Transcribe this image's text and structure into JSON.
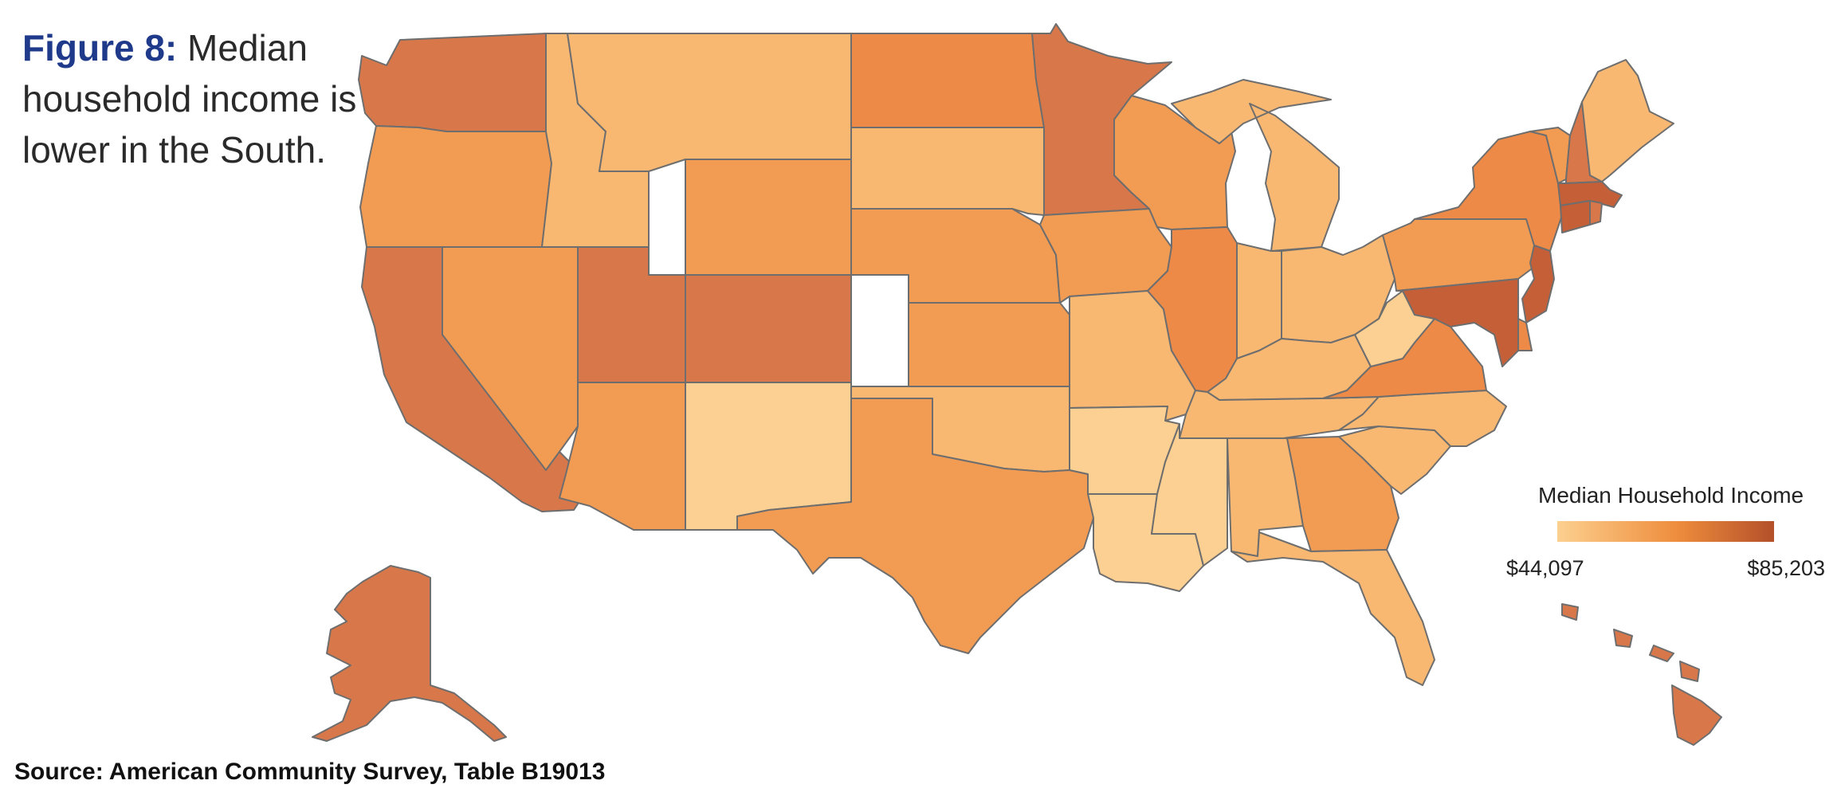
{
  "caption": {
    "figure_label": "Figure 8:",
    "text": "Median household income is lower in the South."
  },
  "legend": {
    "title": "Median Household Income",
    "min_label": "$44,097",
    "max_label": "$85,203",
    "min_color": "#fcd08f",
    "mid_color": "#ee8d3d",
    "max_color": "#b4502a"
  },
  "source": "Source: American Community Survey, Table B19013",
  "colors": {
    "border": "#6e6e6e",
    "lightest": "#fccf92",
    "light": "#f8b872",
    "medium_light": "#f6ae63",
    "medium": "#f29b53",
    "medium_dark": "#ee8a47",
    "dark": "#d8784a",
    "darkest": "#c45f38"
  },
  "map": {
    "states": [
      {
        "name": "washington",
        "tone": "dark"
      },
      {
        "name": "oregon",
        "tone": "medium"
      },
      {
        "name": "california",
        "tone": "dark"
      },
      {
        "name": "nevada",
        "tone": "medium"
      },
      {
        "name": "idaho",
        "tone": "light"
      },
      {
        "name": "montana",
        "tone": "light"
      },
      {
        "name": "wyoming",
        "tone": "medium"
      },
      {
        "name": "utah",
        "tone": "dark"
      },
      {
        "name": "colorado",
        "tone": "dark"
      },
      {
        "name": "arizona",
        "tone": "medium"
      },
      {
        "name": "new-mexico",
        "tone": "lightest"
      },
      {
        "name": "north-dakota",
        "tone": "medium_dark"
      },
      {
        "name": "south-dakota",
        "tone": "light"
      },
      {
        "name": "nebraska",
        "tone": "medium"
      },
      {
        "name": "kansas",
        "tone": "medium"
      },
      {
        "name": "oklahoma",
        "tone": "light"
      },
      {
        "name": "texas",
        "tone": "medium"
      },
      {
        "name": "minnesota",
        "tone": "dark"
      },
      {
        "name": "iowa",
        "tone": "medium"
      },
      {
        "name": "missouri",
        "tone": "light"
      },
      {
        "name": "arkansas",
        "tone": "lightest"
      },
      {
        "name": "louisiana",
        "tone": "lightest"
      },
      {
        "name": "wisconsin",
        "tone": "medium"
      },
      {
        "name": "illinois",
        "tone": "medium_dark"
      },
      {
        "name": "michigan",
        "tone": "light"
      },
      {
        "name": "indiana",
        "tone": "light"
      },
      {
        "name": "ohio",
        "tone": "light"
      },
      {
        "name": "kentucky",
        "tone": "light"
      },
      {
        "name": "tennessee",
        "tone": "light"
      },
      {
        "name": "mississippi",
        "tone": "lightest"
      },
      {
        "name": "alabama",
        "tone": "light"
      },
      {
        "name": "georgia",
        "tone": "medium"
      },
      {
        "name": "florida",
        "tone": "light"
      },
      {
        "name": "south-carolina",
        "tone": "light"
      },
      {
        "name": "north-carolina",
        "tone": "light"
      },
      {
        "name": "virginia",
        "tone": "medium_dark"
      },
      {
        "name": "west-virginia",
        "tone": "lightest"
      },
      {
        "name": "pennsylvania",
        "tone": "medium"
      },
      {
        "name": "new-york",
        "tone": "medium_dark"
      },
      {
        "name": "vermont",
        "tone": "medium"
      },
      {
        "name": "new-hampshire",
        "tone": "dark"
      },
      {
        "name": "maine",
        "tone": "light"
      },
      {
        "name": "massachusetts",
        "tone": "darkest"
      },
      {
        "name": "connecticut",
        "tone": "darkest"
      },
      {
        "name": "rhode-island",
        "tone": "dark"
      },
      {
        "name": "new-jersey",
        "tone": "darkest"
      },
      {
        "name": "delaware",
        "tone": "medium_dark"
      },
      {
        "name": "maryland",
        "tone": "darkest"
      },
      {
        "name": "alaska",
        "tone": "dark"
      },
      {
        "name": "hawaii",
        "tone": "dark"
      }
    ]
  }
}
